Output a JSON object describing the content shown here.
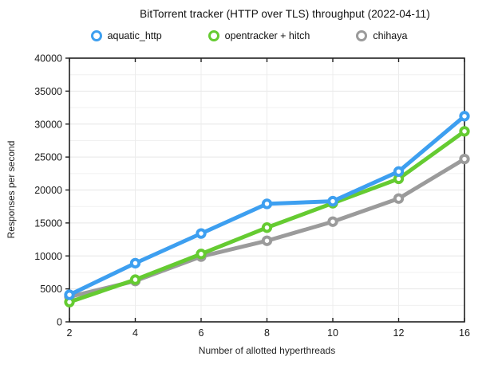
{
  "title": "BitTorrent tracker (HTTP over TLS) throughput (2022-04-11)",
  "axes": {
    "xlabel": "Number of allotted hyperthreads",
    "ylabel": "Responses per second"
  },
  "chart_data": {
    "type": "line",
    "title": "BitTorrent tracker (HTTP over TLS) throughput (2022-04-11)",
    "xlabel": "Number of allotted hyperthreads",
    "ylabel": "Responses per second",
    "categories": [
      2,
      4,
      6,
      8,
      10,
      12,
      16
    ],
    "series": [
      {
        "name": "aquatic_http",
        "color": "#3d9ff0",
        "values": [
          4100,
          8900,
          13400,
          17900,
          18300,
          22800,
          31200
        ]
      },
      {
        "name": "opentracker + hitch",
        "color": "#65cb31",
        "values": [
          3000,
          6400,
          10300,
          14300,
          18000,
          21700,
          28900
        ]
      },
      {
        "name": "chihaya",
        "color": "#9b9b9b",
        "values": [
          3800,
          6200,
          9900,
          12300,
          15200,
          18700,
          24700
        ]
      }
    ],
    "ylim": [
      0,
      40000
    ],
    "y_major_step": 5000,
    "y_minor_step": 2500,
    "y_tick_labels": [
      "0",
      "5000",
      "10000",
      "15000",
      "20000",
      "25000",
      "30000",
      "35000",
      "40000"
    ],
    "x_tick_labels": [
      "2",
      "4",
      "6",
      "8",
      "10",
      "12",
      "16"
    ],
    "grid": true,
    "legend_position": "top",
    "frame_color": "#1f1f1f",
    "grid_color": "#ececec"
  }
}
